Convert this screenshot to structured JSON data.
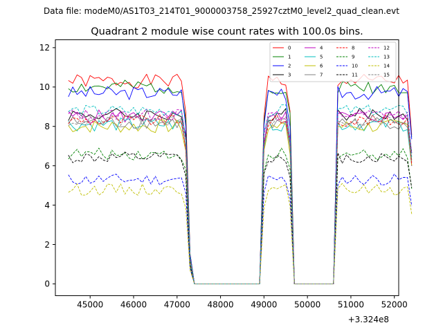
{
  "chart_data": {
    "type": "line",
    "suptitle": "Data file: modeM0/AS1T03_214T01_9000003758_25927cztM0_level2_quad_clean.evt",
    "title": "Quadrant 2 module wise count rates with 100.0s bins.",
    "xlabel": "",
    "ylabel": "",
    "x_offset_label": "+3.324e8",
    "xlim": [
      44200,
      52100
    ],
    "ylim": [
      -0.6,
      12.4
    ],
    "xticks": [
      45000,
      46000,
      47000,
      48000,
      49000,
      50000,
      51000,
      52000
    ],
    "xtick_labels": [
      "45000",
      "46000",
      "47000",
      "48000",
      "49000",
      "50000",
      "51000",
      "52000"
    ],
    "yticks": [
      0,
      2,
      4,
      6,
      8,
      10,
      12
    ],
    "ytick_labels": [
      "0",
      "2",
      "4",
      "6",
      "8",
      "10",
      "12"
    ],
    "legend_position": "top-right",
    "legend_columns": 4,
    "x_start": 44500,
    "bin_width": 100,
    "profile": [
      1,
      1,
      1,
      1,
      1,
      1,
      1,
      1,
      1,
      1,
      1,
      1,
      1,
      1,
      1,
      1,
      1,
      1,
      1,
      1,
      1,
      1,
      1,
      1,
      1,
      1,
      1,
      0.85,
      0.15,
      0,
      0,
      0,
      0,
      0,
      0,
      0,
      0,
      0,
      0,
      0,
      0,
      0,
      0,
      0,
      0,
      0.85,
      1,
      1,
      1,
      1,
      1,
      0.85,
      0,
      0,
      0,
      0,
      0,
      0,
      0,
      0,
      0,
      0,
      1,
      1,
      1,
      1,
      1,
      1,
      1,
      1,
      1,
      1,
      1,
      1,
      1,
      1,
      1,
      1,
      1,
      0.75
    ],
    "series": [
      {
        "name": "0",
        "color": "#ff0000",
        "dash": "solid",
        "level": 10.3,
        "amp": 0.35
      },
      {
        "name": "1",
        "color": "#008000",
        "dash": "solid",
        "level": 10.0,
        "amp": 0.35
      },
      {
        "name": "2",
        "color": "#0000ff",
        "dash": "solid",
        "level": 9.7,
        "amp": 0.35
      },
      {
        "name": "3",
        "color": "#000000",
        "dash": "solid",
        "level": 8.6,
        "amp": 0.35
      },
      {
        "name": "4",
        "color": "#bf00bf",
        "dash": "solid",
        "level": 8.5,
        "amp": 0.35
      },
      {
        "name": "5",
        "color": "#00bfbf",
        "dash": "solid",
        "level": 8.1,
        "amp": 0.35
      },
      {
        "name": "6",
        "color": "#bfbf00",
        "dash": "solid",
        "level": 8.0,
        "amp": 0.35
      },
      {
        "name": "7",
        "color": "#808080",
        "dash": "solid",
        "level": 8.2,
        "amp": 0.35
      },
      {
        "name": "8",
        "color": "#ff0000",
        "dash": "dashed",
        "level": 8.3,
        "amp": 0.3
      },
      {
        "name": "9",
        "color": "#008000",
        "dash": "dashed",
        "level": 6.6,
        "amp": 0.3
      },
      {
        "name": "10",
        "color": "#0000ff",
        "dash": "dashed",
        "level": 5.3,
        "amp": 0.3
      },
      {
        "name": "11",
        "color": "#000000",
        "dash": "dashed",
        "level": 6.4,
        "amp": 0.3
      },
      {
        "name": "12",
        "color": "#bf00bf",
        "dash": "dashed",
        "level": 8.6,
        "amp": 0.3
      },
      {
        "name": "13",
        "color": "#00bfbf",
        "dash": "dashed",
        "level": 8.8,
        "amp": 0.3
      },
      {
        "name": "14",
        "color": "#bfbf00",
        "dash": "dashed",
        "level": 4.8,
        "amp": 0.3
      },
      {
        "name": "15",
        "color": "#808080",
        "dash": "dashed",
        "level": 8.3,
        "amp": 0.3
      }
    ]
  }
}
